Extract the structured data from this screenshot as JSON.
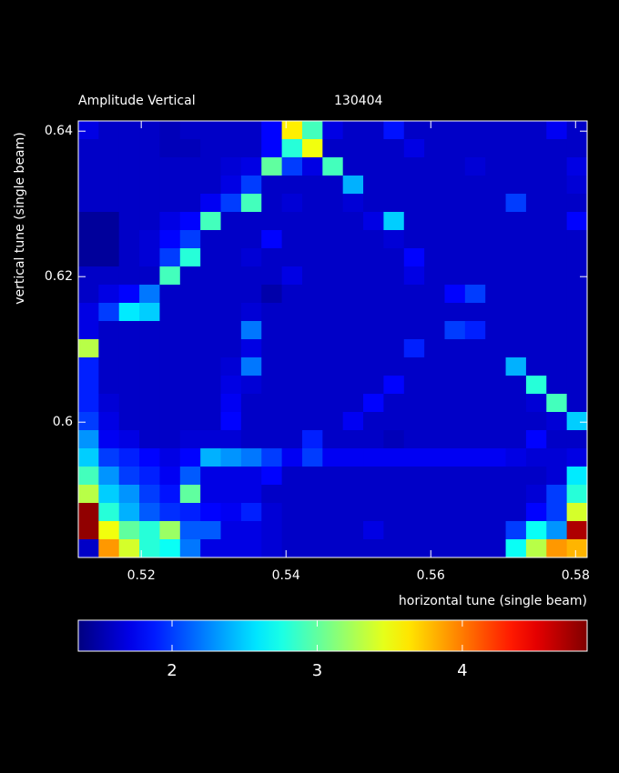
{
  "chart_data": {
    "type": "heatmap",
    "title": "Amplitude Vertical",
    "subtitle": "130404",
    "x_label": "horizontal tune (single beam)",
    "y_label": "vertical tune (single beam)",
    "xlim": [
      0.5113,
      0.5816
    ],
    "ylim": [
      0.5814,
      0.6414
    ],
    "xticks": [
      0.52,
      0.54,
      0.56,
      0.58
    ],
    "yticks": [
      0.6,
      0.62,
      0.64
    ],
    "colormap": "jet",
    "clim": [
      1.354,
      4.86
    ],
    "cticks": [
      2,
      3,
      4
    ],
    "z": [
      [
        1.7,
        1.6,
        1.6,
        1.6,
        1.55,
        1.6,
        1.6,
        1.6,
        1.6,
        1.8,
        3.6,
        2.9,
        1.7,
        1.6,
        1.6,
        1.85,
        1.6,
        1.6,
        1.6,
        1.6,
        1.6,
        1.6,
        1.6,
        1.75,
        1.6
      ],
      [
        1.6,
        1.6,
        1.6,
        1.6,
        1.55,
        1.55,
        1.6,
        1.6,
        1.6,
        1.8,
        2.8,
        3.5,
        1.6,
        1.6,
        1.6,
        1.6,
        1.7,
        1.6,
        1.6,
        1.6,
        1.6,
        1.6,
        1.6,
        1.6,
        1.6
      ],
      [
        1.6,
        1.6,
        1.6,
        1.6,
        1.6,
        1.6,
        1.6,
        1.65,
        1.7,
        3.0,
        2.0,
        1.7,
        2.9,
        1.6,
        1.6,
        1.6,
        1.6,
        1.6,
        1.6,
        1.65,
        1.6,
        1.6,
        1.6,
        1.6,
        1.7
      ],
      [
        1.6,
        1.6,
        1.6,
        1.6,
        1.6,
        1.6,
        1.6,
        1.7,
        2.0,
        1.6,
        1.6,
        1.6,
        1.6,
        2.4,
        1.6,
        1.6,
        1.6,
        1.6,
        1.6,
        1.6,
        1.6,
        1.6,
        1.6,
        1.6,
        1.65
      ],
      [
        1.6,
        1.6,
        1.6,
        1.6,
        1.6,
        1.6,
        1.75,
        2.0,
        2.9,
        1.6,
        1.65,
        1.6,
        1.6,
        1.65,
        1.6,
        1.6,
        1.6,
        1.6,
        1.6,
        1.6,
        1.6,
        2.0,
        1.6,
        1.6,
        1.6
      ],
      [
        1.45,
        1.45,
        1.6,
        1.6,
        1.7,
        1.8,
        2.9,
        1.6,
        1.6,
        1.6,
        1.6,
        1.6,
        1.6,
        1.6,
        1.7,
        2.5,
        1.6,
        1.6,
        1.6,
        1.6,
        1.6,
        1.6,
        1.6,
        1.6,
        1.8
      ],
      [
        1.45,
        1.45,
        1.6,
        1.65,
        1.8,
        2.0,
        1.6,
        1.6,
        1.6,
        1.8,
        1.6,
        1.6,
        1.6,
        1.6,
        1.6,
        1.65,
        1.6,
        1.6,
        1.6,
        1.6,
        1.6,
        1.6,
        1.6,
        1.6,
        1.6
      ],
      [
        1.45,
        1.45,
        1.6,
        1.65,
        2.0,
        2.8,
        1.6,
        1.6,
        1.65,
        1.6,
        1.6,
        1.6,
        1.6,
        1.6,
        1.6,
        1.6,
        1.8,
        1.6,
        1.6,
        1.6,
        1.6,
        1.6,
        1.6,
        1.6,
        1.6
      ],
      [
        1.6,
        1.6,
        1.6,
        1.6,
        2.9,
        1.6,
        1.6,
        1.6,
        1.6,
        1.6,
        1.7,
        1.6,
        1.6,
        1.6,
        1.6,
        1.6,
        1.7,
        1.6,
        1.6,
        1.6,
        1.6,
        1.6,
        1.6,
        1.6,
        1.6
      ],
      [
        1.6,
        1.7,
        1.8,
        2.2,
        1.6,
        1.6,
        1.6,
        1.6,
        1.6,
        1.5,
        1.6,
        1.6,
        1.6,
        1.6,
        1.6,
        1.6,
        1.6,
        1.6,
        1.8,
        2.0,
        1.6,
        1.6,
        1.6,
        1.6,
        1.6
      ],
      [
        1.7,
        2.0,
        2.6,
        2.5,
        1.6,
        1.6,
        1.6,
        1.6,
        1.65,
        1.6,
        1.6,
        1.6,
        1.6,
        1.6,
        1.6,
        1.6,
        1.6,
        1.6,
        1.6,
        1.6,
        1.6,
        1.6,
        1.6,
        1.6,
        1.6
      ],
      [
        1.7,
        1.6,
        1.6,
        1.6,
        1.6,
        1.6,
        1.6,
        1.6,
        2.2,
        1.6,
        1.6,
        1.6,
        1.6,
        1.6,
        1.6,
        1.6,
        1.6,
        1.6,
        2.0,
        1.9,
        1.6,
        1.6,
        1.6,
        1.6,
        1.6
      ],
      [
        3.3,
        1.6,
        1.6,
        1.6,
        1.6,
        1.6,
        1.6,
        1.6,
        1.7,
        1.6,
        1.6,
        1.6,
        1.6,
        1.6,
        1.6,
        1.6,
        1.9,
        1.6,
        1.6,
        1.6,
        1.6,
        1.6,
        1.6,
        1.6,
        1.6
      ],
      [
        1.9,
        1.6,
        1.6,
        1.6,
        1.6,
        1.6,
        1.6,
        1.65,
        2.2,
        1.6,
        1.6,
        1.6,
        1.6,
        1.6,
        1.6,
        1.6,
        1.6,
        1.6,
        1.6,
        1.6,
        1.6,
        2.4,
        1.6,
        1.6,
        1.6
      ],
      [
        1.9,
        1.6,
        1.6,
        1.6,
        1.6,
        1.6,
        1.6,
        1.7,
        1.65,
        1.6,
        1.6,
        1.6,
        1.6,
        1.6,
        1.6,
        1.8,
        1.6,
        1.6,
        1.6,
        1.6,
        1.6,
        1.6,
        2.8,
        1.6,
        1.6
      ],
      [
        1.9,
        1.65,
        1.6,
        1.6,
        1.6,
        1.6,
        1.6,
        1.75,
        1.6,
        1.6,
        1.6,
        1.6,
        1.6,
        1.6,
        1.8,
        1.6,
        1.6,
        1.6,
        1.6,
        1.6,
        1.6,
        1.6,
        1.65,
        2.9,
        1.6
      ],
      [
        2.0,
        1.7,
        1.6,
        1.6,
        1.6,
        1.6,
        1.6,
        1.8,
        1.6,
        1.6,
        1.6,
        1.6,
        1.6,
        1.75,
        1.6,
        1.6,
        1.6,
        1.6,
        1.6,
        1.6,
        1.6,
        1.6,
        1.6,
        1.65,
        2.5
      ],
      [
        2.3,
        1.75,
        1.7,
        1.6,
        1.6,
        1.65,
        1.65,
        1.65,
        1.6,
        1.6,
        1.6,
        1.9,
        1.6,
        1.6,
        1.6,
        1.55,
        1.6,
        1.6,
        1.6,
        1.6,
        1.6,
        1.6,
        1.8,
        1.6,
        1.6
      ],
      [
        2.5,
        2.0,
        1.9,
        1.8,
        1.7,
        1.8,
        2.4,
        2.3,
        2.2,
        2.0,
        1.75,
        2.0,
        1.75,
        1.75,
        1.75,
        1.75,
        1.75,
        1.75,
        1.75,
        1.75,
        1.75,
        1.7,
        1.65,
        1.65,
        1.7
      ],
      [
        2.9,
        2.3,
        2.0,
        1.9,
        1.75,
        2.1,
        1.7,
        1.7,
        1.7,
        1.8,
        1.6,
        1.6,
        1.6,
        1.6,
        1.6,
        1.6,
        1.6,
        1.6,
        1.6,
        1.6,
        1.6,
        1.6,
        1.6,
        1.65,
        2.6
      ],
      [
        3.3,
        2.5,
        2.3,
        2.0,
        1.85,
        3.0,
        1.7,
        1.7,
        1.7,
        1.6,
        1.6,
        1.6,
        1.6,
        1.6,
        1.6,
        1.6,
        1.6,
        1.6,
        1.6,
        1.6,
        1.6,
        1.6,
        1.65,
        2.0,
        2.8
      ],
      [
        4.8,
        2.8,
        2.4,
        2.1,
        1.95,
        1.9,
        1.8,
        1.75,
        1.9,
        1.65,
        1.6,
        1.6,
        1.6,
        1.6,
        1.6,
        1.6,
        1.6,
        1.6,
        1.6,
        1.6,
        1.6,
        1.6,
        1.8,
        2.0,
        3.4
      ],
      [
        4.8,
        3.5,
        3.0,
        2.8,
        3.2,
        2.1,
        2.1,
        1.7,
        1.7,
        1.65,
        1.6,
        1.6,
        1.6,
        1.6,
        1.7,
        1.6,
        1.6,
        1.6,
        1.6,
        1.6,
        1.6,
        2.0,
        2.7,
        2.3,
        4.7
      ],
      [
        1.6,
        3.9,
        3.4,
        2.8,
        2.7,
        2.2,
        1.7,
        1.7,
        1.7,
        1.65,
        1.6,
        1.6,
        1.6,
        1.6,
        1.6,
        1.6,
        1.6,
        1.6,
        1.6,
        1.6,
        1.6,
        2.7,
        3.3,
        3.9,
        3.8
      ]
    ]
  }
}
